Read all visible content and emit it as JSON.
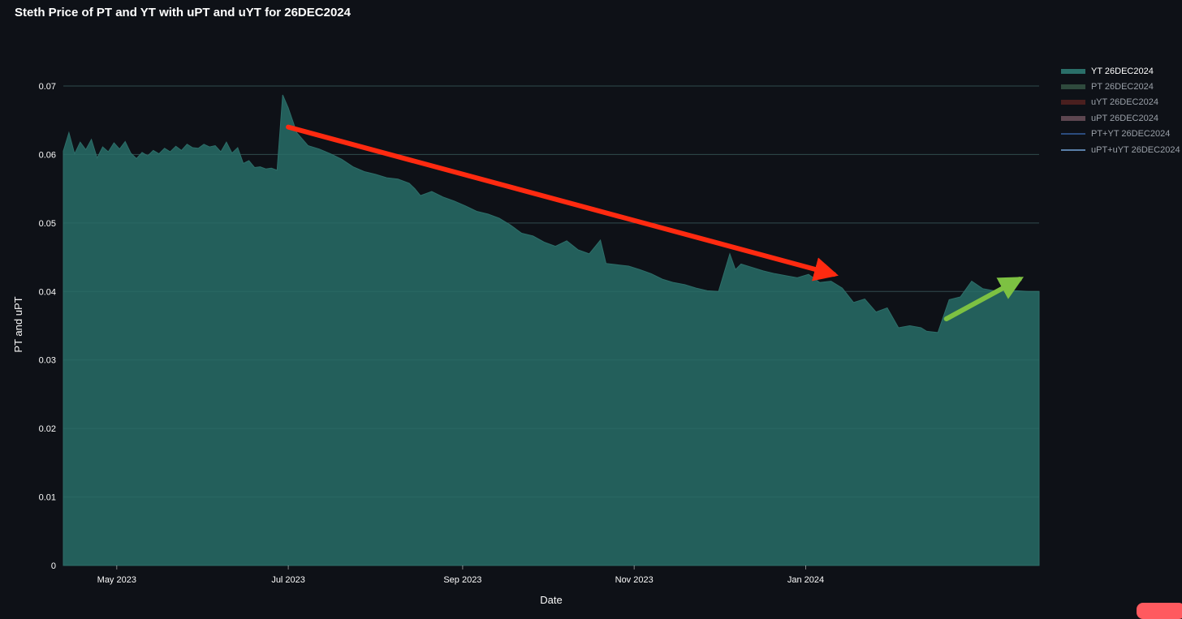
{
  "title": "Steth Price of PT and YT with uPT and uYT for 26DEC2024",
  "colors": {
    "background": "#0e1117",
    "area_fill": "#235f5b",
    "area_edge": "#2d6e69",
    "grid": "#2a3038",
    "red_arrow": "#ff2a10",
    "green_arrow": "#7dc142"
  },
  "legend": [
    {
      "label": "YT 26DEC2024",
      "color": "#2a6f69",
      "kind": "area",
      "active": true
    },
    {
      "label": "PT 26DEC2024",
      "color": "#2f4a3d",
      "kind": "area",
      "active": false
    },
    {
      "label": "uYT 26DEC2024",
      "color": "#4a1f1f",
      "kind": "area",
      "active": false
    },
    {
      "label": "uPT 26DEC2024",
      "color": "#5d4650",
      "kind": "area",
      "active": false
    },
    {
      "label": "PT+YT 26DEC2024",
      "color": "#2b4c7e",
      "kind": "line",
      "active": false
    },
    {
      "label": "uPT+uYT 26DEC2024",
      "color": "#5a7fa8",
      "kind": "line",
      "active": false
    }
  ],
  "chart_data": {
    "type": "area",
    "title": "Steth Price of PT and YT with uPT and uYT for 26DEC2024",
    "xlabel": "Date",
    "ylabel": "PT and uPT",
    "xlim": [
      "2023-04-12",
      "2024-03-24"
    ],
    "ylim": [
      0,
      0.07
    ],
    "yticks": [
      "0",
      "0.01",
      "0.02",
      "0.03",
      "0.04",
      "0.05",
      "0.06",
      "0.07"
    ],
    "yticks_values": [
      0,
      0.01,
      0.02,
      0.03,
      0.04,
      0.05,
      0.06,
      0.07
    ],
    "xticks": [
      "May 2023",
      "Jul 2023",
      "Sep 2023",
      "Nov 2023",
      "Jan 2024"
    ],
    "xticks_dates": [
      "2023-05-01",
      "2023-07-01",
      "2023-09-01",
      "2023-11-01",
      "2024-01-01"
    ],
    "grid": true,
    "legend_position": "right",
    "series": [
      {
        "name": "YT 26DEC2024",
        "x": [
          "2023-04-12",
          "2023-04-14",
          "2023-04-16",
          "2023-04-18",
          "2023-04-20",
          "2023-04-22",
          "2023-04-24",
          "2023-04-26",
          "2023-04-28",
          "2023-04-30",
          "2023-05-02",
          "2023-05-04",
          "2023-05-06",
          "2023-05-08",
          "2023-05-10",
          "2023-05-12",
          "2023-05-14",
          "2023-05-16",
          "2023-05-18",
          "2023-05-20",
          "2023-05-22",
          "2023-05-24",
          "2023-05-26",
          "2023-05-28",
          "2023-05-30",
          "2023-06-01",
          "2023-06-03",
          "2023-06-05",
          "2023-06-07",
          "2023-06-09",
          "2023-06-11",
          "2023-06-13",
          "2023-06-15",
          "2023-06-17",
          "2023-06-19",
          "2023-06-21",
          "2023-06-23",
          "2023-06-25",
          "2023-06-27",
          "2023-06-29",
          "2023-07-01",
          "2023-07-04",
          "2023-07-08",
          "2023-07-12",
          "2023-07-16",
          "2023-07-20",
          "2023-07-24",
          "2023-07-28",
          "2023-08-01",
          "2023-08-05",
          "2023-08-09",
          "2023-08-13",
          "2023-08-15",
          "2023-08-17",
          "2023-08-21",
          "2023-08-25",
          "2023-08-29",
          "2023-09-02",
          "2023-09-06",
          "2023-09-10",
          "2023-09-14",
          "2023-09-18",
          "2023-09-22",
          "2023-09-26",
          "2023-09-30",
          "2023-10-04",
          "2023-10-08",
          "2023-10-12",
          "2023-10-16",
          "2023-10-20",
          "2023-10-22",
          "2023-10-26",
          "2023-10-30",
          "2023-11-03",
          "2023-11-07",
          "2023-11-11",
          "2023-11-15",
          "2023-11-19",
          "2023-11-23",
          "2023-11-27",
          "2023-12-01",
          "2023-12-05",
          "2023-12-07",
          "2023-12-09",
          "2023-12-13",
          "2023-12-17",
          "2023-12-21",
          "2023-12-25",
          "2023-12-29",
          "2024-01-02",
          "2024-01-06",
          "2024-01-10",
          "2024-01-14",
          "2024-01-18",
          "2024-01-22",
          "2024-01-26",
          "2024-01-30",
          "2024-02-03",
          "2024-02-07",
          "2024-02-11",
          "2024-02-13",
          "2024-02-17",
          "2024-02-21",
          "2024-02-25",
          "2024-02-29",
          "2024-03-04",
          "2024-03-08",
          "2024-03-12",
          "2024-03-16",
          "2024-03-20",
          "2024-03-24"
        ],
        "y": [
          0.0605,
          0.0632,
          0.0601,
          0.0618,
          0.0607,
          0.0622,
          0.0595,
          0.0611,
          0.0604,
          0.0617,
          0.0608,
          0.0619,
          0.0602,
          0.0594,
          0.0603,
          0.0598,
          0.0606,
          0.0601,
          0.0609,
          0.0604,
          0.0612,
          0.0606,
          0.0615,
          0.061,
          0.0609,
          0.0615,
          0.0611,
          0.0613,
          0.0604,
          0.0618,
          0.0602,
          0.061,
          0.0587,
          0.0591,
          0.0581,
          0.0582,
          0.0579,
          0.058,
          0.0577,
          0.0687,
          0.0668,
          0.0632,
          0.0613,
          0.0608,
          0.0601,
          0.0593,
          0.0582,
          0.0575,
          0.0571,
          0.0566,
          0.0564,
          0.0558,
          0.055,
          0.054,
          0.0546,
          0.0538,
          0.0532,
          0.0525,
          0.0517,
          0.0513,
          0.0507,
          0.0497,
          0.0485,
          0.0481,
          0.0472,
          0.0466,
          0.0474,
          0.0461,
          0.0455,
          0.0475,
          0.0441,
          0.0439,
          0.0437,
          0.0432,
          0.0426,
          0.0418,
          0.0413,
          0.041,
          0.0405,
          0.0401,
          0.04,
          0.0455,
          0.0432,
          0.044,
          0.0435,
          0.043,
          0.0426,
          0.0423,
          0.042,
          0.0425,
          0.0413,
          0.0415,
          0.0405,
          0.0384,
          0.0389,
          0.037,
          0.0376,
          0.0347,
          0.035,
          0.0347,
          0.0342,
          0.034,
          0.0388,
          0.0392,
          0.0415,
          0.0404,
          0.0401,
          0.04,
          0.0401,
          0.04,
          0.04
        ]
      }
    ],
    "annotations": [
      {
        "type": "arrow",
        "color": "#ff2a10",
        "from": [
          "2023-07-01",
          0.064
        ],
        "to": [
          "2024-01-11",
          0.0425
        ]
      },
      {
        "type": "arrow",
        "color": "#7dc142",
        "from": [
          "2024-02-20",
          0.036
        ],
        "to": [
          "2024-03-17",
          0.0418
        ]
      }
    ]
  }
}
